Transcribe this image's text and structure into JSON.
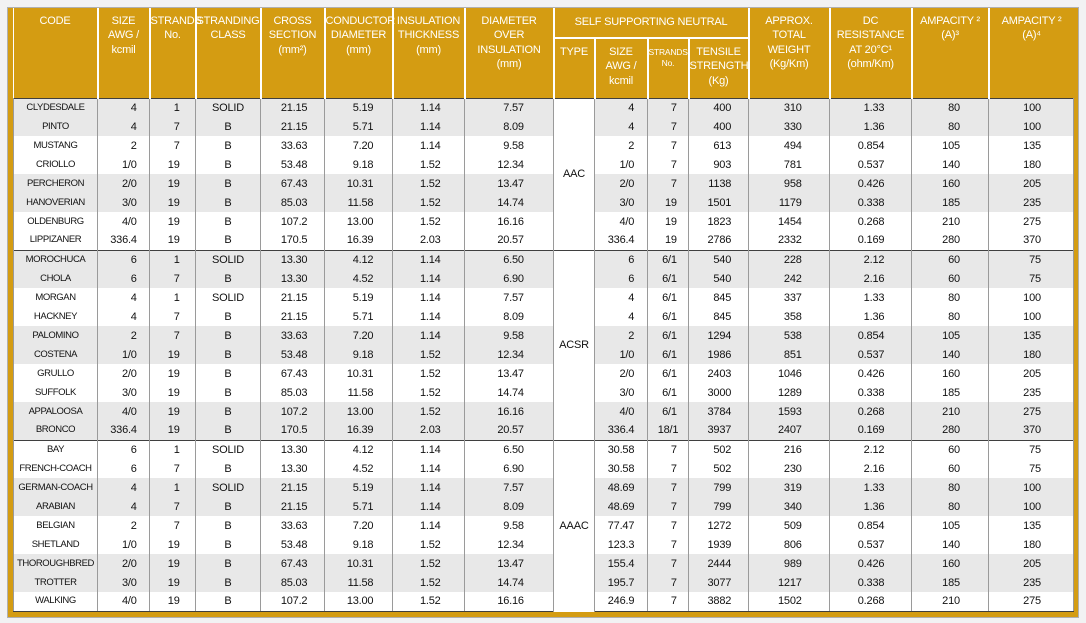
{
  "colors": {
    "header-gold": "#d49c12",
    "shade-gray": "#e8e8e8",
    "grid-line": "#9a9a9a",
    "section-line": "#3f3f3f",
    "header-text": "#ffffff",
    "data-text": "#111111",
    "page-bg": "#f2f2f3"
  },
  "table": {
    "headers": {
      "code": "CODE",
      "size": "SIZE\nAWG /\nkcmil",
      "strands": "STRANDS\nNo.",
      "stranding_class": "STRANDING\nCLASS",
      "cross_section": "CROSS\nSECTION\n(mm²)",
      "conductor_diameter": "CONDUCTOR\nDIAMETER\n(mm)",
      "insulation_thickness": "INSULATION\nTHICKNESS\n(mm)",
      "diameter_over_insulation": "DIAMETER\nOVER\nINSULATION\n(mm)",
      "neutral_group": "SELF SUPPORTING NEUTRAL",
      "neutral_type": "TYPE",
      "neutral_size": "SIZE\nAWG /\nkcmil",
      "neutral_strands": "STRANDS\nNo.",
      "neutral_tensile": "TENSILE\nSTRENGTH\n(Kg)",
      "approx_weight": "APPROX.\nTOTAL\nWEIGHT\n(Kg/Km)",
      "dc_resistance": "DC\nRESISTANCE\nAT 20°C¹\n(ohm/Km)",
      "ampacity_3": "AMPACITY ²\n(A)³",
      "ampacity_4": "AMPACITY ²\n(A)⁴"
    },
    "sections": [
      {
        "type": "AAC",
        "rows": [
          {
            "code": "CLYDESDALE",
            "size": "4",
            "strands": "1",
            "stranding_class": "SOLID",
            "cross_section": "21.15",
            "conductor_diameter": "5.19",
            "insulation_thickness": "1.14",
            "diameter_over_insulation": "7.57",
            "neutral_size": "4",
            "neutral_strands": "7",
            "neutral_tensile": "400",
            "weight": "310",
            "dc_resistance": "1.33",
            "ampacity_3": "80",
            "ampacity_4": "100"
          },
          {
            "code": "PINTO",
            "size": "4",
            "strands": "7",
            "stranding_class": "B",
            "cross_section": "21.15",
            "conductor_diameter": "5.71",
            "insulation_thickness": "1.14",
            "diameter_over_insulation": "8.09",
            "neutral_size": "4",
            "neutral_strands": "7",
            "neutral_tensile": "400",
            "weight": "330",
            "dc_resistance": "1.36",
            "ampacity_3": "80",
            "ampacity_4": "100"
          },
          {
            "code": "MUSTANG",
            "size": "2",
            "strands": "7",
            "stranding_class": "B",
            "cross_section": "33.63",
            "conductor_diameter": "7.20",
            "insulation_thickness": "1.14",
            "diameter_over_insulation": "9.58",
            "neutral_size": "2",
            "neutral_strands": "7",
            "neutral_tensile": "613",
            "weight": "494",
            "dc_resistance": "0.854",
            "ampacity_3": "105",
            "ampacity_4": "135"
          },
          {
            "code": "CRIOLLO",
            "size": "1/0",
            "strands": "19",
            "stranding_class": "B",
            "cross_section": "53.48",
            "conductor_diameter": "9.18",
            "insulation_thickness": "1.52",
            "diameter_over_insulation": "12.34",
            "neutral_size": "1/0",
            "neutral_strands": "7",
            "neutral_tensile": "903",
            "weight": "781",
            "dc_resistance": "0.537",
            "ampacity_3": "140",
            "ampacity_4": "180"
          },
          {
            "code": "PERCHERON",
            "size": "2/0",
            "strands": "19",
            "stranding_class": "B",
            "cross_section": "67.43",
            "conductor_diameter": "10.31",
            "insulation_thickness": "1.52",
            "diameter_over_insulation": "13.47",
            "neutral_size": "2/0",
            "neutral_strands": "7",
            "neutral_tensile": "1138",
            "weight": "958",
            "dc_resistance": "0.426",
            "ampacity_3": "160",
            "ampacity_4": "205"
          },
          {
            "code": "HANOVERIAN",
            "size": "3/0",
            "strands": "19",
            "stranding_class": "B",
            "cross_section": "85.03",
            "conductor_diameter": "11.58",
            "insulation_thickness": "1.52",
            "diameter_over_insulation": "14.74",
            "neutral_size": "3/0",
            "neutral_strands": "19",
            "neutral_tensile": "1501",
            "weight": "1179",
            "dc_resistance": "0.338",
            "ampacity_3": "185",
            "ampacity_4": "235"
          },
          {
            "code": "OLDENBURG",
            "size": "4/0",
            "strands": "19",
            "stranding_class": "B",
            "cross_section": "107.2",
            "conductor_diameter": "13.00",
            "insulation_thickness": "1.52",
            "diameter_over_insulation": "16.16",
            "neutral_size": "4/0",
            "neutral_strands": "19",
            "neutral_tensile": "1823",
            "weight": "1454",
            "dc_resistance": "0.268",
            "ampacity_3": "210",
            "ampacity_4": "275"
          },
          {
            "code": "LIPPIZANER",
            "size": "336.4",
            "strands": "19",
            "stranding_class": "B",
            "cross_section": "170.5",
            "conductor_diameter": "16.39",
            "insulation_thickness": "2.03",
            "diameter_over_insulation": "20.57",
            "neutral_size": "336.4",
            "neutral_strands": "19",
            "neutral_tensile": "2786",
            "weight": "2332",
            "dc_resistance": "0.169",
            "ampacity_3": "280",
            "ampacity_4": "370"
          }
        ]
      },
      {
        "type": "ACSR",
        "rows": [
          {
            "code": "MOROCHUCA",
            "size": "6",
            "strands": "1",
            "stranding_class": "SOLID",
            "cross_section": "13.30",
            "conductor_diameter": "4.12",
            "insulation_thickness": "1.14",
            "diameter_over_insulation": "6.50",
            "neutral_size": "6",
            "neutral_strands": "6/1",
            "neutral_tensile": "540",
            "weight": "228",
            "dc_resistance": "2.12",
            "ampacity_3": "60",
            "ampacity_4": "75"
          },
          {
            "code": "CHOLA",
            "size": "6",
            "strands": "7",
            "stranding_class": "B",
            "cross_section": "13.30",
            "conductor_diameter": "4.52",
            "insulation_thickness": "1.14",
            "diameter_over_insulation": "6.90",
            "neutral_size": "6",
            "neutral_strands": "6/1",
            "neutral_tensile": "540",
            "weight": "242",
            "dc_resistance": "2.16",
            "ampacity_3": "60",
            "ampacity_4": "75"
          },
          {
            "code": "MORGAN",
            "size": "4",
            "strands": "1",
            "stranding_class": "SOLID",
            "cross_section": "21.15",
            "conductor_diameter": "5.19",
            "insulation_thickness": "1.14",
            "diameter_over_insulation": "7.57",
            "neutral_size": "4",
            "neutral_strands": "6/1",
            "neutral_tensile": "845",
            "weight": "337",
            "dc_resistance": "1.33",
            "ampacity_3": "80",
            "ampacity_4": "100"
          },
          {
            "code": "HACKNEY",
            "size": "4",
            "strands": "7",
            "stranding_class": "B",
            "cross_section": "21.15",
            "conductor_diameter": "5.71",
            "insulation_thickness": "1.14",
            "diameter_over_insulation": "8.09",
            "neutral_size": "4",
            "neutral_strands": "6/1",
            "neutral_tensile": "845",
            "weight": "358",
            "dc_resistance": "1.36",
            "ampacity_3": "80",
            "ampacity_4": "100"
          },
          {
            "code": "PALOMINO",
            "size": "2",
            "strands": "7",
            "stranding_class": "B",
            "cross_section": "33.63",
            "conductor_diameter": "7.20",
            "insulation_thickness": "1.14",
            "diameter_over_insulation": "9.58",
            "neutral_size": "2",
            "neutral_strands": "6/1",
            "neutral_tensile": "1294",
            "weight": "538",
            "dc_resistance": "0.854",
            "ampacity_3": "105",
            "ampacity_4": "135"
          },
          {
            "code": "COSTENA",
            "size": "1/0",
            "strands": "19",
            "stranding_class": "B",
            "cross_section": "53.48",
            "conductor_diameter": "9.18",
            "insulation_thickness": "1.52",
            "diameter_over_insulation": "12.34",
            "neutral_size": "1/0",
            "neutral_strands": "6/1",
            "neutral_tensile": "1986",
            "weight": "851",
            "dc_resistance": "0.537",
            "ampacity_3": "140",
            "ampacity_4": "180"
          },
          {
            "code": "GRULLO",
            "size": "2/0",
            "strands": "19",
            "stranding_class": "B",
            "cross_section": "67.43",
            "conductor_diameter": "10.31",
            "insulation_thickness": "1.52",
            "diameter_over_insulation": "13.47",
            "neutral_size": "2/0",
            "neutral_strands": "6/1",
            "neutral_tensile": "2403",
            "weight": "1046",
            "dc_resistance": "0.426",
            "ampacity_3": "160",
            "ampacity_4": "205"
          },
          {
            "code": "SUFFOLK",
            "size": "3/0",
            "strands": "19",
            "stranding_class": "B",
            "cross_section": "85.03",
            "conductor_diameter": "11.58",
            "insulation_thickness": "1.52",
            "diameter_over_insulation": "14.74",
            "neutral_size": "3/0",
            "neutral_strands": "6/1",
            "neutral_tensile": "3000",
            "weight": "1289",
            "dc_resistance": "0.338",
            "ampacity_3": "185",
            "ampacity_4": "235"
          },
          {
            "code": "APPALOOSA",
            "size": "4/0",
            "strands": "19",
            "stranding_class": "B",
            "cross_section": "107.2",
            "conductor_diameter": "13.00",
            "insulation_thickness": "1.52",
            "diameter_over_insulation": "16.16",
            "neutral_size": "4/0",
            "neutral_strands": "6/1",
            "neutral_tensile": "3784",
            "weight": "1593",
            "dc_resistance": "0.268",
            "ampacity_3": "210",
            "ampacity_4": "275"
          },
          {
            "code": "BRONCO",
            "size": "336.4",
            "strands": "19",
            "stranding_class": "B",
            "cross_section": "170.5",
            "conductor_diameter": "16.39",
            "insulation_thickness": "2.03",
            "diameter_over_insulation": "20.57",
            "neutral_size": "336.4",
            "neutral_strands": "18/1",
            "neutral_tensile": "3937",
            "weight": "2407",
            "dc_resistance": "0.169",
            "ampacity_3": "280",
            "ampacity_4": "370"
          }
        ]
      },
      {
        "type": "AAAC",
        "rows": [
          {
            "code": "BAY",
            "size": "6",
            "strands": "1",
            "stranding_class": "SOLID",
            "cross_section": "13.30",
            "conductor_diameter": "4.12",
            "insulation_thickness": "1.14",
            "diameter_over_insulation": "6.50",
            "neutral_size": "30.58",
            "neutral_strands": "7",
            "neutral_tensile": "502",
            "weight": "216",
            "dc_resistance": "2.12",
            "ampacity_3": "60",
            "ampacity_4": "75"
          },
          {
            "code": "FRENCH-COACH",
            "size": "6",
            "strands": "7",
            "stranding_class": "B",
            "cross_section": "13.30",
            "conductor_diameter": "4.52",
            "insulation_thickness": "1.14",
            "diameter_over_insulation": "6.90",
            "neutral_size": "30.58",
            "neutral_strands": "7",
            "neutral_tensile": "502",
            "weight": "230",
            "dc_resistance": "2.16",
            "ampacity_3": "60",
            "ampacity_4": "75"
          },
          {
            "code": "GERMAN-COACH",
            "size": "4",
            "strands": "1",
            "stranding_class": "SOLID",
            "cross_section": "21.15",
            "conductor_diameter": "5.19",
            "insulation_thickness": "1.14",
            "diameter_over_insulation": "7.57",
            "neutral_size": "48.69",
            "neutral_strands": "7",
            "neutral_tensile": "799",
            "weight": "319",
            "dc_resistance": "1.33",
            "ampacity_3": "80",
            "ampacity_4": "100"
          },
          {
            "code": "ARABIAN",
            "size": "4",
            "strands": "7",
            "stranding_class": "B",
            "cross_section": "21.15",
            "conductor_diameter": "5.71",
            "insulation_thickness": "1.14",
            "diameter_over_insulation": "8.09",
            "neutral_size": "48.69",
            "neutral_strands": "7",
            "neutral_tensile": "799",
            "weight": "340",
            "dc_resistance": "1.36",
            "ampacity_3": "80",
            "ampacity_4": "100"
          },
          {
            "code": "BELGIAN",
            "size": "2",
            "strands": "7",
            "stranding_class": "B",
            "cross_section": "33.63",
            "conductor_diameter": "7.20",
            "insulation_thickness": "1.14",
            "diameter_over_insulation": "9.58",
            "neutral_size": "77.47",
            "neutral_strands": "7",
            "neutral_tensile": "1272",
            "weight": "509",
            "dc_resistance": "0.854",
            "ampacity_3": "105",
            "ampacity_4": "135"
          },
          {
            "code": "SHETLAND",
            "size": "1/0",
            "strands": "19",
            "stranding_class": "B",
            "cross_section": "53.48",
            "conductor_diameter": "9.18",
            "insulation_thickness": "1.52",
            "diameter_over_insulation": "12.34",
            "neutral_size": "123.3",
            "neutral_strands": "7",
            "neutral_tensile": "1939",
            "weight": "806",
            "dc_resistance": "0.537",
            "ampacity_3": "140",
            "ampacity_4": "180"
          },
          {
            "code": "THOROUGHBRED",
            "size": "2/0",
            "strands": "19",
            "stranding_class": "B",
            "cross_section": "67.43",
            "conductor_diameter": "10.31",
            "insulation_thickness": "1.52",
            "diameter_over_insulation": "13.47",
            "neutral_size": "155.4",
            "neutral_strands": "7",
            "neutral_tensile": "2444",
            "weight": "989",
            "dc_resistance": "0.426",
            "ampacity_3": "160",
            "ampacity_4": "205"
          },
          {
            "code": "TROTTER",
            "size": "3/0",
            "strands": "19",
            "stranding_class": "B",
            "cross_section": "85.03",
            "conductor_diameter": "11.58",
            "insulation_thickness": "1.52",
            "diameter_over_insulation": "14.74",
            "neutral_size": "195.7",
            "neutral_strands": "7",
            "neutral_tensile": "3077",
            "weight": "1217",
            "dc_resistance": "0.338",
            "ampacity_3": "185",
            "ampacity_4": "235"
          },
          {
            "code": "WALKING",
            "size": "4/0",
            "strands": "19",
            "stranding_class": "B",
            "cross_section": "107.2",
            "conductor_diameter": "13.00",
            "insulation_thickness": "1.52",
            "diameter_over_insulation": "16.16",
            "neutral_size": "246.9",
            "neutral_strands": "7",
            "neutral_tensile": "3882",
            "weight": "1502",
            "dc_resistance": "0.268",
            "ampacity_3": "210",
            "ampacity_4": "275"
          }
        ]
      }
    ]
  }
}
